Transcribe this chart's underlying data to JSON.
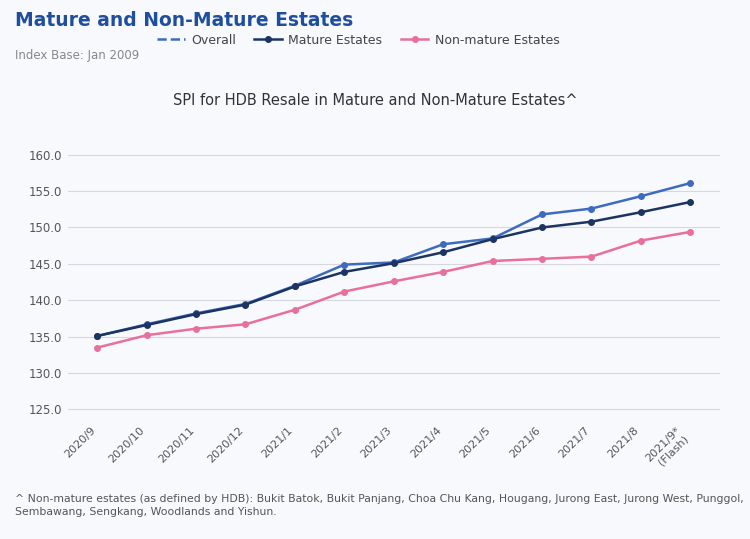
{
  "title": "Mature and Non-Mature Estates",
  "subtitle": "Index Base: Jan 2009",
  "chart_title": "SPI for HDB Resale in Mature and Non-Mature Estates^",
  "footnote": "^ Non-mature estates (as defined by HDB): Bukit Batok, Bukit Panjang, Choa Chu Kang, Hougang, Jurong East, Jurong West, Punggol,\nSembawang, Sengkang, Woodlands and Yishun.",
  "x_labels": [
    "2020/9",
    "2020/10",
    "2020/11",
    "2020/12",
    "2021/1",
    "2021/2",
    "2021/3",
    "2021/4",
    "2021/5",
    "2021/6",
    "2021/7",
    "2021/8",
    "2021/9*\n(Flash)"
  ],
  "overall_values": [
    135.1,
    136.7,
    138.2,
    139.5,
    142.0,
    144.9,
    145.2,
    147.7,
    148.5,
    151.8,
    152.6,
    154.3,
    156.1
  ],
  "mature_values": [
    135.1,
    136.6,
    138.1,
    139.4,
    141.9,
    143.9,
    145.1,
    146.6,
    148.4,
    150.0,
    150.8,
    152.1,
    153.5
  ],
  "non_mature_values": [
    133.5,
    135.2,
    136.1,
    136.7,
    138.7,
    141.2,
    142.6,
    143.9,
    145.4,
    145.7,
    146.0,
    148.2,
    149.4
  ],
  "overall_color": "#3d6bbf",
  "mature_color": "#1c3461",
  "non_mature_color": "#e8709a",
  "ylim": [
    123.5,
    162.0
  ],
  "yticks": [
    125.0,
    130.0,
    135.0,
    140.0,
    145.0,
    150.0,
    155.0,
    160.0
  ],
  "background_color": "#f8f9fc",
  "grid_color": "#d5d8e0",
  "title_color": "#1f4e9e",
  "subtitle_color": "#888888",
  "chart_title_color": "#333333"
}
